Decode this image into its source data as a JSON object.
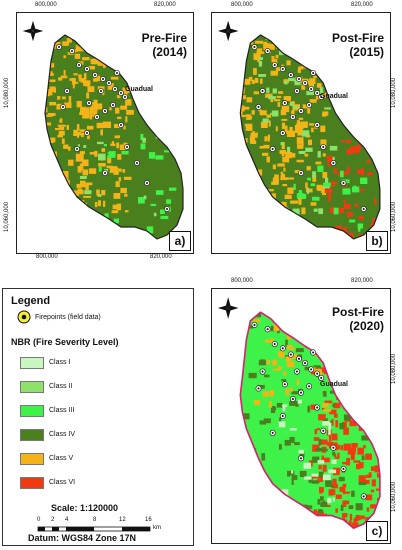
{
  "panels": [
    {
      "title_line1": "Pre-Fire",
      "title_line2": "(2014)",
      "label": "a)",
      "variant": "pre2014",
      "x_ticks": [
        "800,000",
        "820,000"
      ],
      "y_ticks": [
        "10,080,000",
        "10,060,000"
      ],
      "town": "Guadual"
    },
    {
      "title_line1": "Post-Fire",
      "title_line2": "(2015)",
      "label": "b)",
      "variant": "post2015",
      "x_ticks": [
        "800,000",
        "820,000"
      ],
      "y_ticks": [
        "10,080,000",
        "10,060,000"
      ],
      "town": "Guadual"
    },
    {
      "title_line1": "Post-Fire",
      "title_line2": "(2020)",
      "label": "c)",
      "variant": "post2020",
      "x_ticks": [
        "800,000",
        "820,000"
      ],
      "y_ticks": [
        "10,080,000",
        "10,060,000"
      ],
      "town": "Guadual"
    }
  ],
  "legend": {
    "title": "Legend",
    "firepoints": "Firepoints (field data)",
    "nbr_title": "NBR (Fire Severity Level)",
    "classes": [
      {
        "label": "Class I",
        "color": "#c8f5c0"
      },
      {
        "label": "Class II",
        "color": "#8de36a"
      },
      {
        "label": "Class III",
        "color": "#3ff24a"
      },
      {
        "label": "Class IV",
        "color": "#4a7f1e"
      },
      {
        "label": "Class V",
        "color": "#f4b418"
      },
      {
        "label": "Class VI",
        "color": "#f03a12"
      }
    ],
    "scale": "Scale: 1:120000",
    "scalebar_ticks": [
      "0",
      "2",
      "4",
      "8",
      "12",
      "16"
    ],
    "scalebar_unit": "km",
    "datum": "Datum: WGS84 Zone 17N"
  }
}
